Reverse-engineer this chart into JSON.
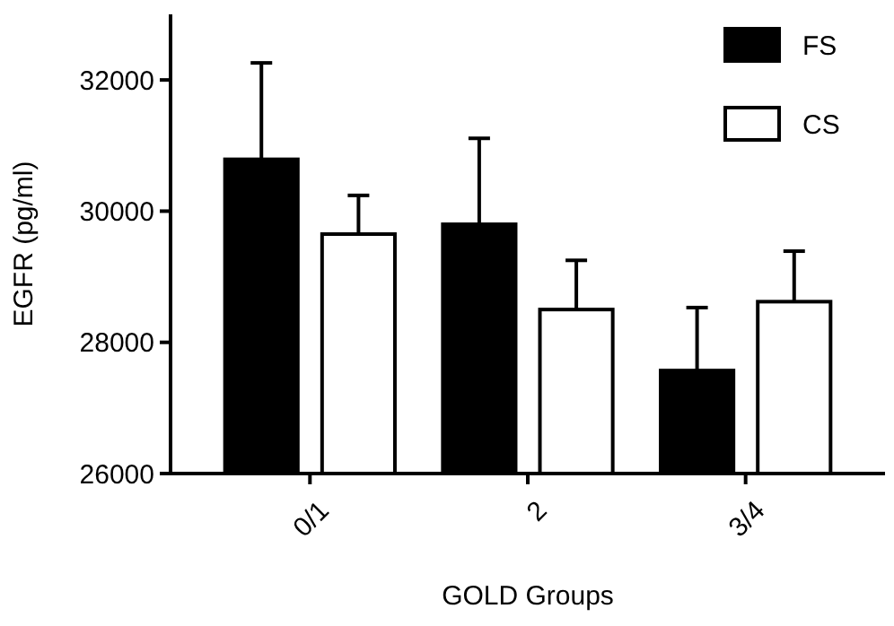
{
  "chart_data": {
    "type": "bar",
    "xlabel": "GOLD Groups",
    "ylabel": "EGFR (pg/ml)",
    "categories": [
      "0/1",
      "2",
      "3/4"
    ],
    "series": [
      {
        "name": "FS",
        "color": "#000000",
        "values": [
          30790,
          29800,
          27570
        ],
        "errors": [
          [
            30790,
            32260
          ],
          [
            29800,
            31110
          ],
          [
            27570,
            28530
          ]
        ]
      },
      {
        "name": "CS",
        "color": "#ffffff",
        "values": [
          29650,
          28500,
          28620
        ],
        "errors": [
          [
            29650,
            30240
          ],
          [
            28500,
            29250
          ],
          [
            28620,
            29390
          ]
        ]
      }
    ],
    "ylim": [
      26000,
      33000
    ],
    "yticks": [
      26000,
      28000,
      30000,
      32000
    ],
    "grid": false,
    "legend": "top right"
  }
}
